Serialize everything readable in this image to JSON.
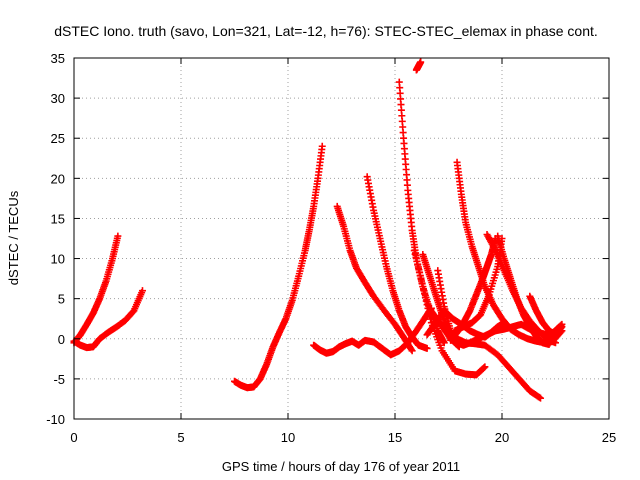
{
  "chart_data": {
    "type": "scatter",
    "title": "dSTEC Iono. truth (savo, Lon=321, Lat=-12, h=76): STEC-STEC_elemax in phase cont.",
    "xlabel": "GPS time / hours of day 176 of year 2011",
    "ylabel": "dSTEC  / TECUs",
    "xlim": [
      0,
      25
    ],
    "ylim": [
      -10,
      35
    ],
    "xticks": [
      0,
      5,
      10,
      15,
      20,
      25
    ],
    "yticks": [
      -10,
      -5,
      0,
      5,
      10,
      15,
      20,
      25,
      30,
      35
    ],
    "grid": true,
    "marker": "plus",
    "color": "#ff0000",
    "series": [
      {
        "x": [
          0.0,
          0.3,
          0.6,
          0.9,
          1.2,
          1.5,
          1.8,
          2.05
        ],
        "y": [
          -0.5,
          0.5,
          1.8,
          3.2,
          5.0,
          7.2,
          10.0,
          12.8
        ]
      },
      {
        "x": [
          0.0,
          0.3,
          0.6,
          0.9,
          1.2,
          1.6,
          2.0,
          2.4,
          2.8,
          3.2
        ],
        "y": [
          -0.3,
          -0.8,
          -1.1,
          -1.0,
          0.0,
          0.8,
          1.5,
          2.3,
          3.5,
          6.0
        ]
      },
      {
        "x": [
          7.5,
          7.8,
          8.1,
          8.4,
          8.7,
          9.0,
          9.3,
          9.6,
          9.9,
          10.2,
          10.5,
          10.8,
          11.0,
          11.2,
          11.4,
          11.6
        ],
        "y": [
          -5.3,
          -5.8,
          -6.1,
          -6.0,
          -5.0,
          -3.2,
          -1.0,
          0.8,
          2.5,
          4.8,
          7.8,
          11.0,
          13.6,
          16.5,
          20.0,
          24.0
        ]
      },
      {
        "x": [
          11.2,
          11.5,
          11.8,
          12.1,
          12.4,
          12.7,
          13.0,
          13.3,
          13.6,
          14.0,
          14.4,
          14.8,
          15.2,
          15.6,
          16.0,
          16.4,
          16.7
        ],
        "y": [
          -0.8,
          -1.4,
          -1.8,
          -1.6,
          -1.0,
          -0.6,
          -0.3,
          -0.8,
          -0.2,
          -0.4,
          -1.2,
          -2.0,
          -1.5,
          -0.5,
          1.0,
          2.6,
          3.8
        ]
      },
      {
        "x": [
          12.3,
          12.6,
          12.9,
          13.2,
          13.6,
          14.0,
          14.5,
          15.0,
          15.4,
          15.8
        ],
        "y": [
          16.5,
          14.0,
          11.0,
          8.8,
          7.0,
          5.3,
          3.5,
          1.8,
          0.2,
          -1.5
        ]
      },
      {
        "x": [
          13.7,
          14.0,
          14.3,
          14.6,
          14.9,
          15.2,
          15.5,
          15.8,
          16.1,
          16.5
        ],
        "y": [
          20.2,
          16.0,
          12.5,
          9.0,
          6.0,
          3.5,
          1.5,
          0.2,
          -0.8,
          -1.2
        ]
      },
      {
        "x": [
          15.2,
          15.4,
          15.6,
          15.8,
          16.0,
          16.3,
          16.6,
          17.0,
          17.3
        ],
        "y": [
          32.0,
          25.0,
          18.5,
          13.5,
          10.0,
          6.5,
          3.8,
          1.0,
          -0.5
        ]
      },
      {
        "x": [
          15.9,
          16.3,
          16.7,
          17.2,
          17.8,
          18.3,
          18.8,
          19.2
        ],
        "y": [
          11.0,
          6.5,
          2.0,
          -1.5,
          -4.0,
          -4.4,
          -4.5,
          -3.5
        ]
      },
      {
        "x": [
          16.0,
          16.1,
          16.2
        ],
        "y": [
          33.5,
          34.0,
          34.5
        ]
      },
      {
        "x": [
          16.3,
          16.6,
          16.9,
          17.2,
          17.5,
          17.9,
          18.3,
          18.7,
          19.2,
          19.8,
          20.3,
          20.8,
          21.3,
          21.8
        ],
        "y": [
          10.5,
          8.0,
          5.5,
          3.0,
          1.0,
          0.0,
          -0.5,
          -0.6,
          -0.8,
          -2.0,
          -3.5,
          -5.0,
          -6.5,
          -7.4
        ]
      },
      {
        "x": [
          16.5,
          16.9,
          17.3,
          17.7,
          18.1,
          18.5,
          18.9,
          19.2,
          19.5,
          19.8,
          20.1
        ],
        "y": [
          0.5,
          2.0,
          3.5,
          2.5,
          1.8,
          1.0,
          0.5,
          0.2,
          0.8,
          1.5,
          2.0
        ]
      },
      {
        "x": [
          16.6,
          17.0,
          17.3,
          17.6,
          18.0
        ],
        "y": [
          3.8,
          2.3,
          1.2,
          0.0,
          -1.0
        ]
      },
      {
        "x": [
          17.0,
          17.3,
          17.6,
          17.9,
          18.2,
          18.5,
          18.9,
          19.3,
          19.7,
          20.1,
          20.5,
          20.9,
          21.3,
          21.7,
          22.1,
          22.4,
          22.8
        ],
        "y": [
          8.5,
          4.0,
          1.0,
          -0.5,
          -0.8,
          -0.5,
          0.0,
          0.5,
          1.0,
          1.2,
          1.5,
          1.8,
          1.2,
          0.8,
          0.5,
          0.8,
          1.8
        ]
      },
      {
        "x": [
          17.9,
          18.1,
          18.3,
          18.6,
          18.9,
          19.2,
          19.6,
          20.0,
          20.4,
          20.8,
          21.2,
          21.6,
          22.0,
          22.4,
          22.8
        ],
        "y": [
          22.0,
          18.0,
          14.5,
          11.5,
          9.0,
          6.5,
          4.2,
          2.5,
          1.2,
          0.5,
          0.0,
          -0.3,
          -0.5,
          -0.2,
          1.0
        ]
      },
      {
        "x": [
          17.6,
          17.9,
          18.2,
          18.5,
          18.8,
          19.1,
          19.3,
          19.5,
          19.7
        ],
        "y": [
          -0.2,
          0.8,
          2.0,
          3.5,
          5.5,
          7.5,
          9.0,
          10.5,
          12.5
        ]
      },
      {
        "x": [
          17.8,
          18.2,
          18.6,
          19.0,
          19.4,
          19.8,
          20.0
        ],
        "y": [
          1.0,
          1.5,
          2.0,
          3.0,
          5.5,
          9.0,
          12.5
        ]
      },
      {
        "x": [
          19.3,
          19.7,
          20.1,
          20.5,
          20.9,
          21.3,
          21.7,
          22.1,
          22.5
        ],
        "y": [
          13.0,
          11.0,
          8.5,
          6.0,
          3.8,
          2.2,
          1.0,
          0.0,
          -0.5
        ]
      },
      {
        "x": [
          19.8,
          20.1,
          20.4,
          20.7,
          21.0,
          21.3,
          21.6,
          21.9,
          22.2,
          22.6
        ],
        "y": [
          12.8,
          10.0,
          7.5,
          5.0,
          3.0,
          1.5,
          0.3,
          -0.5,
          -0.7,
          1.0
        ]
      },
      {
        "x": [
          21.3,
          21.6,
          21.9,
          22.2,
          22.5,
          22.8
        ],
        "y": [
          5.3,
          3.5,
          2.0,
          1.0,
          0.5,
          1.5
        ]
      }
    ]
  }
}
